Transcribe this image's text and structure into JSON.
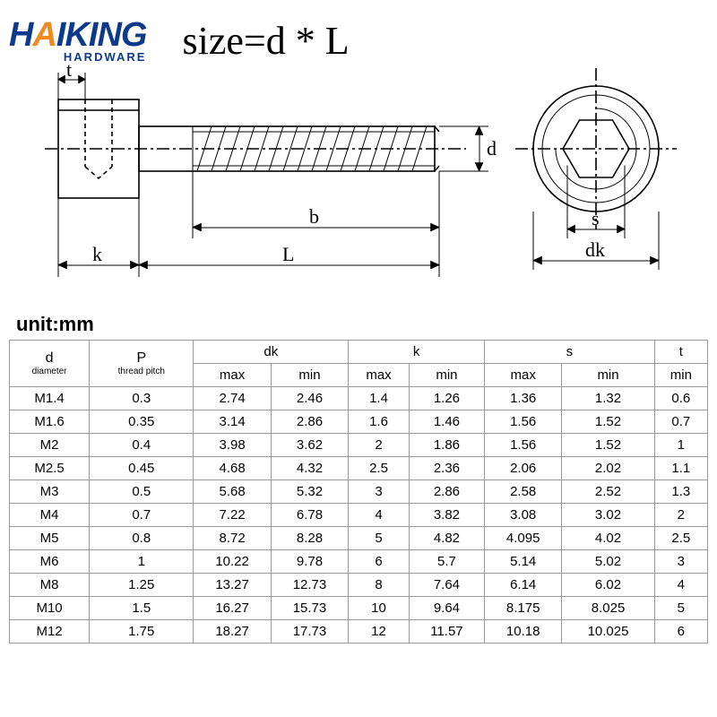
{
  "logo": {
    "brand_pre": "H",
    "brand_accent": "A",
    "brand_rest": "IKING",
    "subtitle": "HARDWARE"
  },
  "title": "size=d * L",
  "unit_label": "unit:mm",
  "diagram": {
    "labels": {
      "t": "t",
      "k": "k",
      "L": "L",
      "b": "b",
      "d": "d",
      "s": "s",
      "dk": "dk"
    },
    "stroke": "#000000",
    "stroke_width": 1.4,
    "font_family": "Times New Roman, serif",
    "font_size": 22
  },
  "table": {
    "header_row1": [
      "d",
      "P",
      "dk",
      "k",
      "s",
      "t"
    ],
    "header_sub": {
      "d": "diameter",
      "P": "thread pitch"
    },
    "header_row2": [
      "max",
      "min",
      "max",
      "min",
      "max",
      "min",
      "min"
    ],
    "rows": [
      [
        "M1.4",
        "0.3",
        "2.74",
        "2.46",
        "1.4",
        "1.26",
        "1.36",
        "1.32",
        "0.6"
      ],
      [
        "M1.6",
        "0.35",
        "3.14",
        "2.86",
        "1.6",
        "1.46",
        "1.56",
        "1.52",
        "0.7"
      ],
      [
        "M2",
        "0.4",
        "3.98",
        "3.62",
        "2",
        "1.86",
        "1.56",
        "1.52",
        "1"
      ],
      [
        "M2.5",
        "0.45",
        "4.68",
        "4.32",
        "2.5",
        "2.36",
        "2.06",
        "2.02",
        "1.1"
      ],
      [
        "M3",
        "0.5",
        "5.68",
        "5.32",
        "3",
        "2.86",
        "2.58",
        "2.52",
        "1.3"
      ],
      [
        "M4",
        "0.7",
        "7.22",
        "6.78",
        "4",
        "3.82",
        "3.08",
        "3.02",
        "2"
      ],
      [
        "M5",
        "0.8",
        "8.72",
        "8.28",
        "5",
        "4.82",
        "4.095",
        "4.02",
        "2.5"
      ],
      [
        "M6",
        "1",
        "10.22",
        "9.78",
        "6",
        "5.7",
        "5.14",
        "5.02",
        "3"
      ],
      [
        "M8",
        "1.25",
        "13.27",
        "12.73",
        "8",
        "7.64",
        "6.14",
        "6.02",
        "4"
      ],
      [
        "M10",
        "1.5",
        "16.27",
        "15.73",
        "10",
        "9.64",
        "8.175",
        "8.025",
        "5"
      ],
      [
        "M12",
        "1.75",
        "18.27",
        "17.73",
        "12",
        "11.57",
        "10.18",
        "10.025",
        "6"
      ]
    ],
    "border_color": "#999999",
    "font_size": 15
  }
}
